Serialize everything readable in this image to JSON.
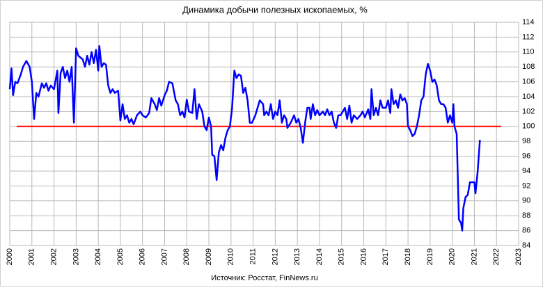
{
  "chart_data": {
    "type": "line",
    "title": "Динамика добычи полезных ископаемых, %",
    "source": "Источник: Росстат, FinNews.ru",
    "x": [
      2000.0,
      2000.08,
      2000.15,
      2000.25,
      2000.35,
      2000.5,
      2000.6,
      2000.75,
      2000.9,
      2001.0,
      2001.1,
      2001.2,
      2001.3,
      2001.45,
      2001.55,
      2001.65,
      2001.75,
      2001.85,
      2002.0,
      2002.15,
      2002.2,
      2002.3,
      2002.4,
      2002.5,
      2002.6,
      2002.7,
      2002.8,
      2002.9,
      2003.0,
      2003.1,
      2003.3,
      2003.4,
      2003.5,
      2003.6,
      2003.7,
      2003.8,
      2003.9,
      2004.0,
      2004.05,
      2004.15,
      2004.25,
      2004.35,
      2004.45,
      2004.55,
      2004.65,
      2004.75,
      2004.9,
      2005.0,
      2005.1,
      2005.2,
      2005.3,
      2005.4,
      2005.5,
      2005.6,
      2005.75,
      2005.9,
      2006.0,
      2006.15,
      2006.3,
      2006.4,
      2006.55,
      2006.65,
      2006.75,
      2006.85,
      2007.0,
      2007.1,
      2007.2,
      2007.35,
      2007.5,
      2007.6,
      2007.7,
      2007.8,
      2007.9,
      2008.0,
      2008.1,
      2008.25,
      2008.35,
      2008.45,
      2008.55,
      2008.7,
      2008.8,
      2008.9,
      2009.0,
      2009.1,
      2009.15,
      2009.25,
      2009.35,
      2009.45,
      2009.55,
      2009.65,
      2009.75,
      2009.85,
      2009.95,
      2010.05,
      2010.15,
      2010.25,
      2010.35,
      2010.45,
      2010.55,
      2010.65,
      2010.75,
      2010.85,
      2010.95,
      2011.1,
      2011.3,
      2011.45,
      2011.5,
      2011.6,
      2011.7,
      2011.8,
      2011.9,
      2012.0,
      2012.1,
      2012.2,
      2012.3,
      2012.4,
      2012.5,
      2012.55,
      2012.7,
      2012.85,
      2012.95,
      2013.05,
      2013.15,
      2013.25,
      2013.35,
      2013.45,
      2013.55,
      2013.6,
      2013.7,
      2013.8,
      2013.9,
      2014.0,
      2014.15,
      2014.25,
      2014.35,
      2014.45,
      2014.55,
      2014.65,
      2014.75,
      2014.85,
      2014.95,
      2015.05,
      2015.15,
      2015.25,
      2015.35,
      2015.45,
      2015.55,
      2015.7,
      2015.85,
      2015.95,
      2016.05,
      2016.2,
      2016.3,
      2016.35,
      2016.45,
      2016.55,
      2016.65,
      2016.75,
      2016.85,
      2017.0,
      2017.1,
      2017.2,
      2017.25,
      2017.35,
      2017.45,
      2017.55,
      2017.65,
      2017.75,
      2017.85,
      2017.95,
      2018.0,
      2018.1,
      2018.2,
      2018.3,
      2018.4,
      2018.5,
      2018.6,
      2018.7,
      2018.8,
      2018.9,
      2019.0,
      2019.1,
      2019.2,
      2019.3,
      2019.4,
      2019.5,
      2019.6,
      2019.7,
      2019.8,
      2019.9,
      2020.0,
      2020.05,
      2020.1,
      2020.2,
      2020.3,
      2020.4,
      2020.45,
      2020.5,
      2020.6,
      2020.7,
      2020.8,
      2020.9,
      2021.0,
      2021.05,
      2021.15,
      2021.25
    ],
    "series": [
      {
        "name": "Добыча полезных ископаемых",
        "color": "#0000ff",
        "values": [
          105,
          107.8,
          104.2,
          106,
          105.8,
          107,
          108,
          108.8,
          108,
          106,
          101,
          104.5,
          104,
          105.8,
          105.2,
          105.8,
          104.8,
          105.5,
          105,
          107.5,
          101.8,
          107.2,
          108,
          106.5,
          107.5,
          106,
          108,
          100.5,
          110.5,
          109.5,
          109,
          108,
          109.5,
          108.3,
          110,
          108.5,
          110.3,
          107.5,
          110.8,
          108,
          108.5,
          108.3,
          105.5,
          104.5,
          105,
          104.5,
          104.8,
          100.8,
          103,
          101,
          101.5,
          100.5,
          101,
          100.3,
          101.5,
          102,
          101.5,
          101.2,
          101.8,
          103.8,
          103,
          102.2,
          103.8,
          102.8,
          104.2,
          104.8,
          106,
          105.8,
          103.5,
          103,
          101.5,
          102,
          101.2,
          103.6,
          102,
          101.8,
          105,
          101,
          103,
          102,
          100,
          99.5,
          101.2,
          100,
          96.2,
          96,
          92.8,
          96.5,
          97.5,
          96.8,
          98.5,
          99.5,
          100,
          102.5,
          107.5,
          106.5,
          107,
          106.8,
          104.5,
          105.2,
          103.5,
          100.5,
          100.5,
          101.5,
          103.5,
          103,
          101.5,
          102,
          101.5,
          103,
          101,
          102,
          101.5,
          103.5,
          100.5,
          101.5,
          101,
          99.8,
          100.5,
          101.5,
          100.5,
          101,
          99.8,
          97.8,
          100.5,
          102.5,
          102.5,
          101,
          103,
          101.5,
          102.2,
          101.5,
          102,
          101.5,
          102.3,
          101.5,
          102,
          100.5,
          99.8,
          101.5,
          101.5,
          102,
          102.5,
          101,
          102.8,
          100.5,
          101.5,
          101,
          101.5,
          102,
          101.2,
          102.3,
          101,
          105,
          101.5,
          102.5,
          101.5,
          103.5,
          102.5,
          102.5,
          103.5,
          101.8,
          105,
          103,
          103.5,
          102.5,
          104.3,
          103.5,
          103.8,
          103,
          100,
          99.5,
          98.7,
          99,
          100,
          101.5,
          103.5,
          104,
          107,
          108.4,
          107.5,
          106,
          106.3,
          105.5,
          103.5,
          103,
          103,
          102.5,
          100.5,
          101.5,
          100.5,
          103,
          100,
          99,
          87.5,
          87,
          86,
          89,
          90.5,
          90.8,
          92.5,
          92.5,
          92.5,
          91,
          94,
          98.2
        ]
      }
    ],
    "reference_line": {
      "value": 100,
      "color": "#ff0000"
    },
    "xlim": [
      2000,
      2023
    ],
    "xticks": [
      2000,
      2001,
      2002,
      2003,
      2004,
      2005,
      2006,
      2007,
      2008,
      2009,
      2010,
      2011,
      2012,
      2013,
      2014,
      2015,
      2016,
      2017,
      2018,
      2019,
      2020,
      2021,
      2022,
      2023
    ],
    "ylim": [
      84,
      114
    ],
    "yticks": [
      84,
      86,
      88,
      90,
      92,
      94,
      96,
      98,
      100,
      102,
      104,
      106,
      108,
      110,
      112,
      114
    ],
    "grid": true
  }
}
